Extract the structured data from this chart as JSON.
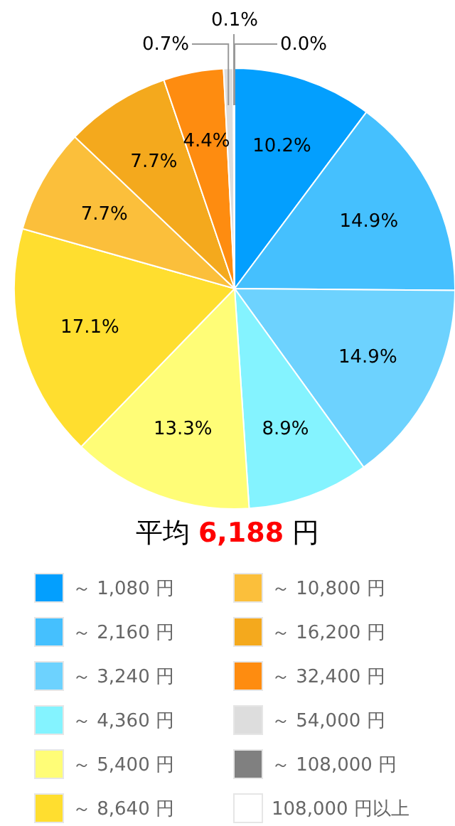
{
  "chart_data": {
    "type": "pie",
    "title": "平均 6,188 円",
    "categories": [
      "～ 1,080 円",
      "～ 2,160 円",
      "～ 3,240 円",
      "～ 4,360 円",
      "～ 5,400 円",
      "～ 8,640 円",
      "～ 10,800 円",
      "～ 16,200 円",
      "～ 32,400 円",
      "～ 54,000 円",
      "～ 108,000 円",
      "108,000 円以上"
    ],
    "values": [
      10.2,
      14.9,
      14.9,
      8.9,
      13.3,
      17.1,
      7.7,
      7.7,
      4.4,
      0.7,
      0.1,
      0.0
    ],
    "colors": [
      "#039ffe",
      "#45c0fe",
      "#6dd2fe",
      "#84f3ff",
      "#fffd77",
      "#ffde2f",
      "#fbbf3b",
      "#f4a91d",
      "#fe8c10",
      "#dddddd",
      "#808080",
      "#ffffff"
    ],
    "value_labels": [
      "10.2%",
      "14.9%",
      "14.9%",
      "8.9%",
      "13.3%",
      "17.1%",
      "7.7%",
      "7.7%",
      "4.4%",
      "0.7%",
      "0.1%",
      "0.0%"
    ],
    "legend": "bottom"
  }
}
